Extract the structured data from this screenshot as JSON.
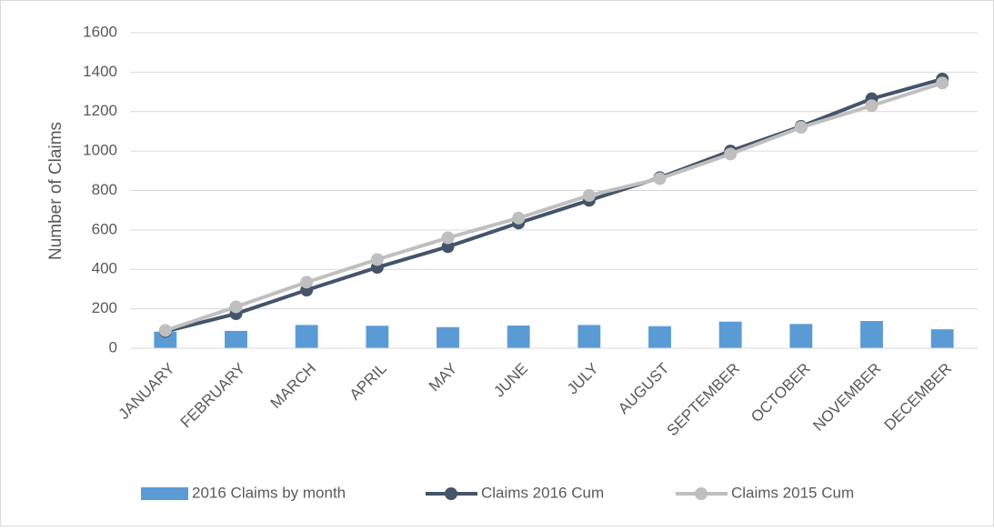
{
  "chart_data": {
    "type": "combo",
    "ylabel": "Number of Claims",
    "categories": [
      "JANUARY",
      "FEBRUARY",
      "MARCH",
      "APRIL",
      "MAY",
      "JUNE",
      "JULY",
      "AUGUST",
      "SEPTEMBER",
      "OCTOBER",
      "NOVEMBER",
      "DECEMBER"
    ],
    "series": [
      {
        "name": "2016 Claims by month",
        "type": "bar",
        "color": "#5b9bd5",
        "values": [
          84,
          88,
          118,
          114,
          107,
          115,
          118,
          112,
          135,
          123,
          138,
          96
        ]
      },
      {
        "name": "Claims 2016 Cum",
        "type": "line",
        "color": "#44546a",
        "values": [
          85,
          175,
          295,
          410,
          515,
          635,
          750,
          865,
          1000,
          1125,
          1265,
          1365
        ]
      },
      {
        "name": "Claims 2015 Cum",
        "type": "line",
        "color": "#bfbfbf",
        "values": [
          90,
          210,
          335,
          450,
          560,
          660,
          775,
          860,
          985,
          1120,
          1230,
          1345
        ]
      }
    ],
    "ylim": [
      0,
      1600
    ],
    "yticks": [
      0,
      200,
      400,
      600,
      800,
      1000,
      1200,
      1400,
      1600
    ],
    "grid": true,
    "legend": "bottom"
  }
}
